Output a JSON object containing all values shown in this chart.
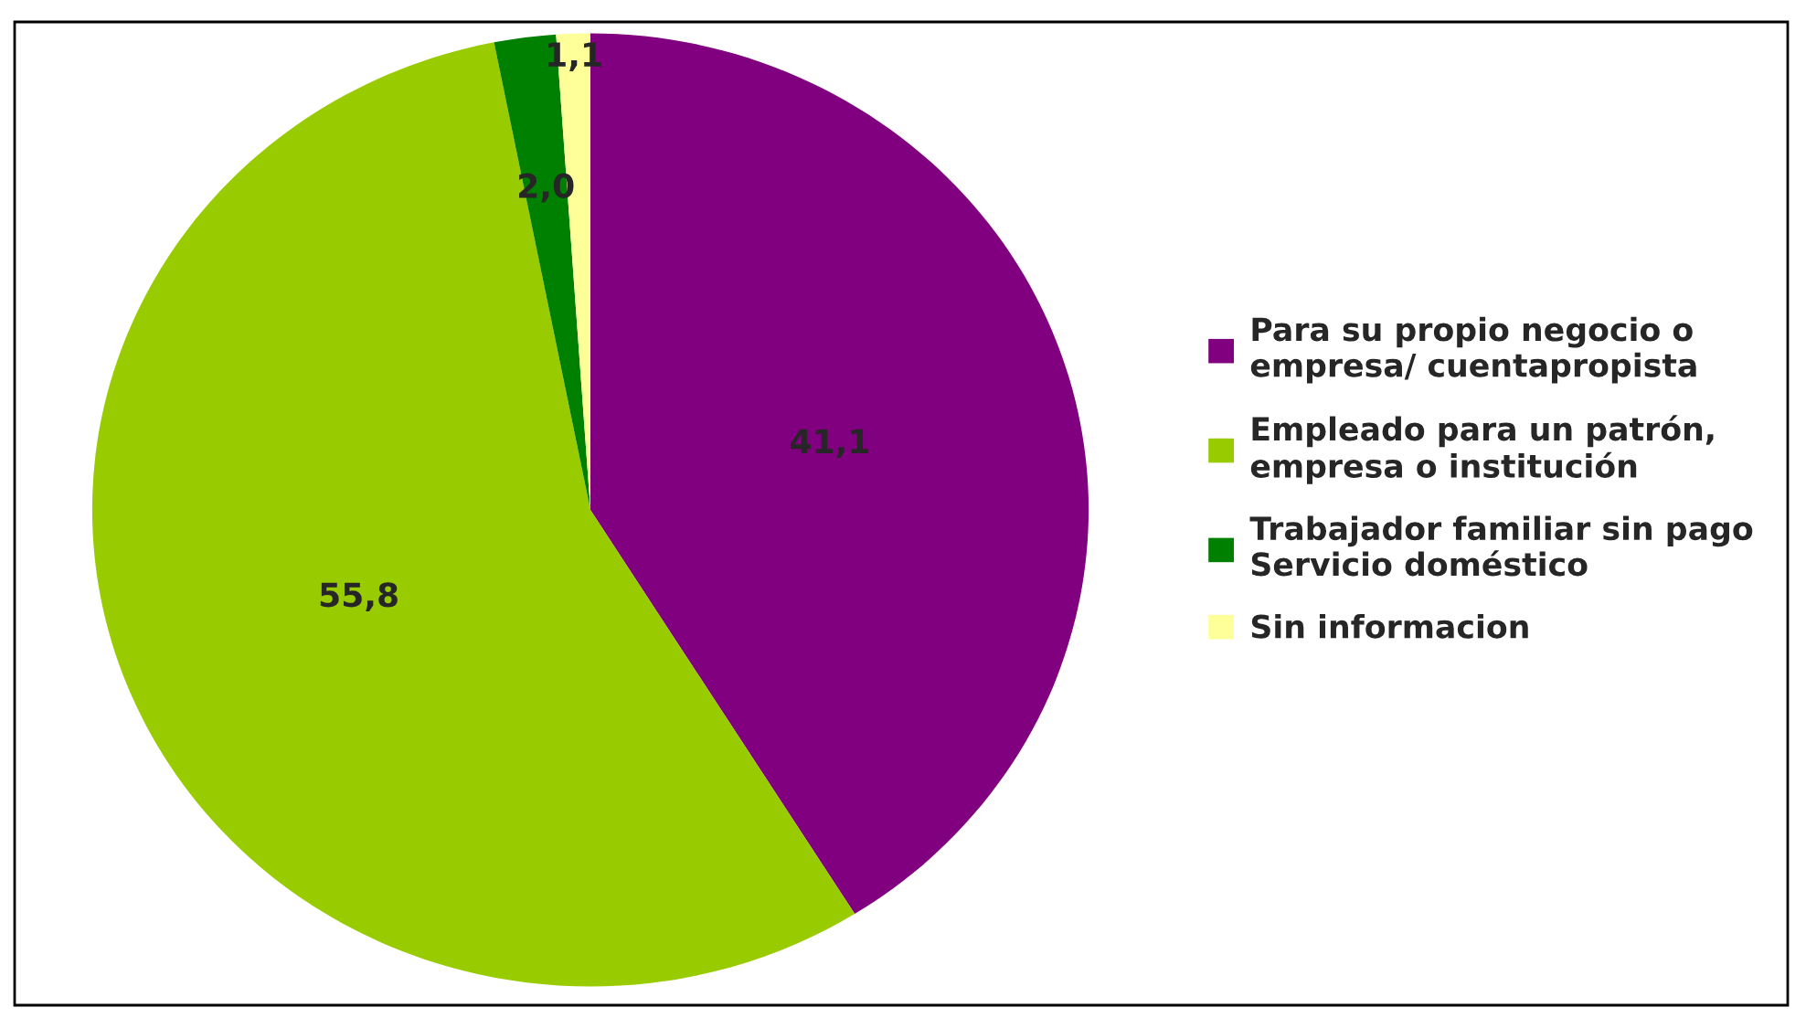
{
  "chart_data": {
    "type": "pie",
    "categories": [
      "Para su propio negocio o\nempresa/ cuentapropista",
      "Empleado para un patrón,\nempresa o institución",
      "Trabajador familiar sin pago\nServicio doméstico",
      "Sin informacion"
    ],
    "values": [
      41.1,
      55.8,
      2.0,
      1.1
    ],
    "colors": [
      "#800080",
      "#99cc00",
      "#008000",
      "#ffff99"
    ],
    "value_labels": [
      "41,1",
      "55,8",
      "2,0",
      "1,1"
    ],
    "legend": "right"
  }
}
